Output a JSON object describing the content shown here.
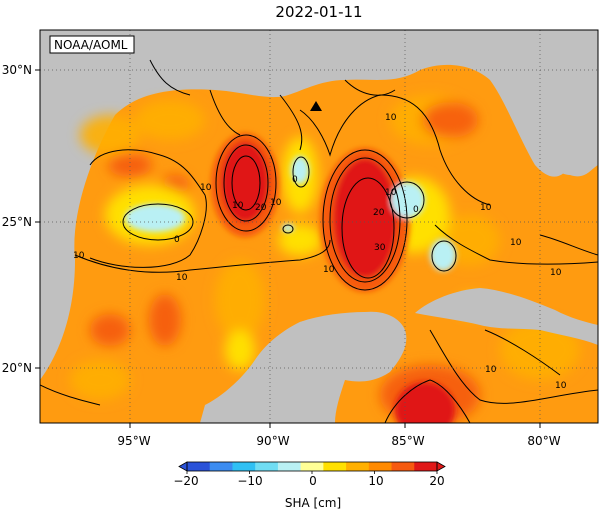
{
  "title": "2022-01-11",
  "credit": "NOAA/AOML",
  "axes": {
    "x_ticks": [
      "95°W",
      "90°W",
      "85°W",
      "80°W"
    ],
    "y_ticks": [
      "30°N",
      "25°N",
      "20°N"
    ]
  },
  "colorbar": {
    "label": "SHA [cm]",
    "min": -20,
    "max": 20,
    "tick_labels": [
      "−20",
      "−10",
      "0",
      "10",
      "20"
    ],
    "colors": [
      "#2a52d8",
      "#3c8cf0",
      "#30c0f4",
      "#70ddf4",
      "#b9f0f4",
      "#ffff96",
      "#ffe000",
      "#ffb000",
      "#ff8a00",
      "#f65a10",
      "#e01818"
    ]
  },
  "contour_labels": [
    "10",
    "0",
    "10",
    "20",
    "10",
    "0",
    "10",
    "20",
    "30",
    "10",
    "0",
    "10",
    "10",
    "10",
    "10",
    "10",
    "10",
    "10",
    "10"
  ],
  "colors": {
    "land": "#c0c0c0",
    "base_sea": "#ff9b10",
    "gridline": "#555555"
  },
  "marker": "triangle-marker"
}
